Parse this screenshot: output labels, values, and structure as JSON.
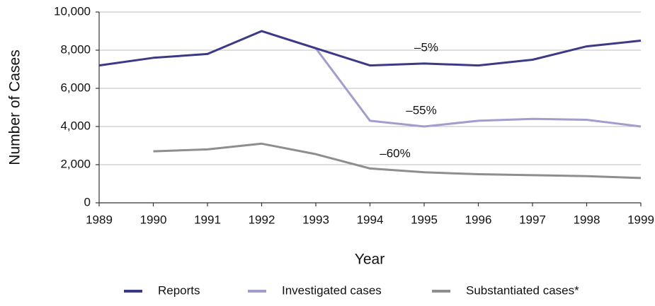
{
  "chart_data": {
    "type": "line",
    "x_label": "Year",
    "y_label": "Number of Cases",
    "x": [
      1989,
      1990,
      1991,
      1992,
      1993,
      1994,
      1995,
      1996,
      1997,
      1998,
      1999
    ],
    "series": [
      {
        "name": "Reports",
        "color": "#3b3a87",
        "values": [
          7200,
          7600,
          7800,
          9000,
          8100,
          7200,
          7300,
          7200,
          7500,
          8200,
          8500
        ]
      },
      {
        "name": "Investigated cases",
        "color": "#a19dcd",
        "values": [
          null,
          null,
          null,
          9000,
          8100,
          4300,
          4000,
          4300,
          4400,
          4350,
          4000
        ]
      },
      {
        "name": "Substantiated cases*",
        "color": "#8e8e8e",
        "values": [
          null,
          2700,
          2800,
          3100,
          2550,
          1800,
          1600,
          1500,
          1450,
          1400,
          1300
        ]
      }
    ],
    "annotations": [
      "–5%",
      "–55%",
      "–60%"
    ],
    "xlim": [
      1989,
      1999
    ],
    "xticks": [
      1989,
      1990,
      1991,
      1992,
      1993,
      1994,
      1995,
      1996,
      1997,
      1998,
      1999
    ],
    "ylim": [
      0,
      10000
    ],
    "yticks": [
      0,
      {
        "value": 2000,
        "label": "2,000"
      },
      {
        "value": 4000,
        "label": "4,000"
      },
      {
        "value": 6000,
        "label": "6,000"
      },
      {
        "value": 8000,
        "label": "8,000"
      },
      {
        "value": 10000,
        "label": "10,000"
      }
    ],
    "grid": true,
    "legend": "bottom"
  }
}
